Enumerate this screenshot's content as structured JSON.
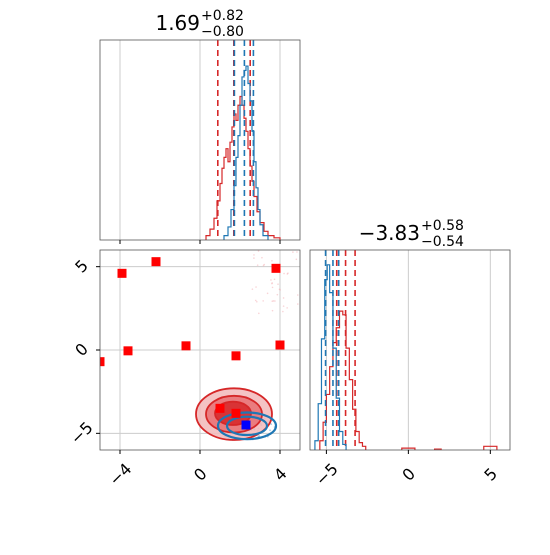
{
  "chart_data": [
    {
      "panel": "marginal-x",
      "type": "histogram",
      "title": {
        "value": "1.69",
        "plus": "+0.82",
        "minus": "−0.80"
      },
      "xlim": [
        -5,
        5
      ],
      "grid": true,
      "series": [
        {
          "color": "#d62728",
          "bins": [
            {
              "x0": 0.3,
              "x1": 0.5,
              "v": 0.02
            },
            {
              "x0": 0.5,
              "x1": 0.7,
              "v": 0.05
            },
            {
              "x0": 0.7,
              "x1": 0.85,
              "v": 0.1
            },
            {
              "x0": 0.85,
              "x1": 1.0,
              "v": 0.18
            },
            {
              "x0": 1.0,
              "x1": 1.1,
              "v": 0.26
            },
            {
              "x0": 1.1,
              "x1": 1.2,
              "v": 0.33
            },
            {
              "x0": 1.2,
              "x1": 1.3,
              "v": 0.38
            },
            {
              "x0": 1.3,
              "x1": 1.4,
              "v": 0.42
            },
            {
              "x0": 1.4,
              "x1": 1.5,
              "v": 0.36
            },
            {
              "x0": 1.5,
              "x1": 1.6,
              "v": 0.45
            },
            {
              "x0": 1.6,
              "x1": 1.7,
              "v": 0.52
            },
            {
              "x0": 1.7,
              "x1": 1.8,
              "v": 0.58
            },
            {
              "x0": 1.8,
              "x1": 1.9,
              "v": 0.55
            },
            {
              "x0": 1.9,
              "x1": 2.0,
              "v": 0.62
            },
            {
              "x0": 2.0,
              "x1": 2.1,
              "v": 0.66
            },
            {
              "x0": 2.1,
              "x1": 2.2,
              "v": 0.62
            },
            {
              "x0": 2.2,
              "x1": 2.3,
              "v": 0.56
            },
            {
              "x0": 2.3,
              "x1": 2.4,
              "v": 0.5
            },
            {
              "x0": 2.4,
              "x1": 2.5,
              "v": 0.42
            },
            {
              "x0": 2.5,
              "x1": 2.6,
              "v": 0.34
            },
            {
              "x0": 2.6,
              "x1": 2.7,
              "v": 0.27
            },
            {
              "x0": 2.7,
              "x1": 2.85,
              "v": 0.2
            },
            {
              "x0": 2.85,
              "x1": 3.0,
              "v": 0.13
            },
            {
              "x0": 3.0,
              "x1": 3.2,
              "v": 0.08
            },
            {
              "x0": 3.2,
              "x1": 3.4,
              "v": 0.04
            },
            {
              "x0": 3.4,
              "x1": 3.7,
              "v": 0.02
            },
            {
              "x0": 3.7,
              "x1": 4.0,
              "v": 0.01
            }
          ],
          "quantiles": [
            0.89,
            1.69,
            2.51
          ]
        },
        {
          "color": "#1f77b4",
          "bins": [
            {
              "x0": 1.2,
              "x1": 1.4,
              "v": 0.02
            },
            {
              "x0": 1.4,
              "x1": 1.55,
              "v": 0.06
            },
            {
              "x0": 1.55,
              "x1": 1.7,
              "v": 0.14
            },
            {
              "x0": 1.7,
              "x1": 1.8,
              "v": 0.25
            },
            {
              "x0": 1.8,
              "x1": 1.9,
              "v": 0.38
            },
            {
              "x0": 1.9,
              "x1": 2.0,
              "v": 0.48
            },
            {
              "x0": 2.0,
              "x1": 2.1,
              "v": 0.62
            },
            {
              "x0": 2.1,
              "x1": 2.2,
              "v": 0.75
            },
            {
              "x0": 2.2,
              "x1": 2.3,
              "v": 0.78
            },
            {
              "x0": 2.3,
              "x1": 2.4,
              "v": 0.8
            },
            {
              "x0": 2.4,
              "x1": 2.5,
              "v": 0.72
            },
            {
              "x0": 2.5,
              "x1": 2.6,
              "v": 0.64
            },
            {
              "x0": 2.6,
              "x1": 2.7,
              "v": 0.5
            },
            {
              "x0": 2.7,
              "x1": 2.8,
              "v": 0.36
            },
            {
              "x0": 2.8,
              "x1": 2.9,
              "v": 0.24
            },
            {
              "x0": 2.9,
              "x1": 3.0,
              "v": 0.14
            },
            {
              "x0": 3.0,
              "x1": 3.15,
              "v": 0.07
            },
            {
              "x0": 3.15,
              "x1": 3.4,
              "v": 0.02
            }
          ],
          "quantiles": [
            1.72,
            2.22,
            2.67
          ]
        }
      ]
    },
    {
      "panel": "marginal-y",
      "type": "histogram",
      "title": {
        "value": "−3.83",
        "plus": "+0.58",
        "minus": "−0.54"
      },
      "xlim": [
        -6,
        6.2
      ],
      "xticks": [
        {
          "v": -5,
          "label": "−5"
        },
        {
          "v": 0,
          "label": "0"
        },
        {
          "v": 5,
          "label": "5"
        }
      ],
      "grid": true,
      "series": [
        {
          "color": "#d62728",
          "bins": [
            {
              "x0": -5.4,
              "x1": -5.2,
              "v": 0.05
            },
            {
              "x0": -5.2,
              "x1": -5.0,
              "v": 0.15
            },
            {
              "x0": -5.0,
              "x1": -4.8,
              "v": 0.3
            },
            {
              "x0": -4.8,
              "x1": -4.6,
              "v": 0.45
            },
            {
              "x0": -4.6,
              "x1": -4.4,
              "v": 0.58
            },
            {
              "x0": -4.4,
              "x1": -4.2,
              "v": 0.66
            },
            {
              "x0": -4.2,
              "x1": -4.0,
              "v": 0.75
            },
            {
              "x0": -4.0,
              "x1": -3.8,
              "v": 0.73
            },
            {
              "x0": -3.8,
              "x1": -3.6,
              "v": 0.55
            },
            {
              "x0": -3.6,
              "x1": -3.4,
              "v": 0.38
            },
            {
              "x0": -3.4,
              "x1": -3.2,
              "v": 0.22
            },
            {
              "x0": -3.2,
              "x1": -3.0,
              "v": 0.1
            },
            {
              "x0": -3.0,
              "x1": -2.8,
              "v": 0.04
            },
            {
              "x0": -2.8,
              "x1": -2.6,
              "v": 0.02
            },
            {
              "x0": -0.4,
              "x1": 0.0,
              "v": 0.01
            },
            {
              "x0": 0.0,
              "x1": 0.4,
              "v": 0.01
            },
            {
              "x0": 1.6,
              "x1": 2.0,
              "v": 0.005
            },
            {
              "x0": 4.6,
              "x1": 5.4,
              "v": 0.02
            }
          ],
          "quantiles": [
            -4.37,
            -3.83,
            -3.25
          ]
        },
        {
          "color": "#1f77b4",
          "bins": [
            {
              "x0": -5.7,
              "x1": -5.5,
              "v": 0.05
            },
            {
              "x0": -5.5,
              "x1": -5.3,
              "v": 0.25
            },
            {
              "x0": -5.3,
              "x1": -5.1,
              "v": 0.6
            },
            {
              "x0": -5.1,
              "x1": -4.95,
              "v": 0.92
            },
            {
              "x0": -4.95,
              "x1": -4.8,
              "v": 1.0
            },
            {
              "x0": -4.8,
              "x1": -4.6,
              "v": 0.85
            },
            {
              "x0": -4.6,
              "x1": -4.4,
              "v": 0.55
            },
            {
              "x0": -4.4,
              "x1": -4.2,
              "v": 0.28
            },
            {
              "x0": -4.2,
              "x1": -4.0,
              "v": 0.1
            },
            {
              "x0": -4.0,
              "x1": -3.8,
              "v": 0.03
            }
          ],
          "quantiles": [
            -5.05,
            -4.6,
            -4.25
          ]
        }
      ]
    },
    {
      "panel": "joint",
      "type": "contour-scatter",
      "xlim": [
        -5,
        5
      ],
      "ylim": [
        -6,
        6
      ],
      "xticks": [
        {
          "v": -4,
          "label": "−4"
        },
        {
          "v": 0,
          "label": "0"
        },
        {
          "v": 4,
          "label": "4"
        }
      ],
      "yticks": [
        {
          "v": -5,
          "label": "−5"
        },
        {
          "v": 0,
          "label": "0"
        },
        {
          "v": 5,
          "label": "5"
        }
      ],
      "grid": true,
      "red_contours": [
        {
          "cx": 1.7,
          "cy": -3.85,
          "rx": 1.9,
          "ry": 1.55
        },
        {
          "cx": 1.7,
          "cy": -3.85,
          "rx": 1.4,
          "ry": 1.1
        },
        {
          "cx": 1.65,
          "cy": -3.8,
          "rx": 0.9,
          "ry": 0.7
        }
      ],
      "blue_contours": [
        {
          "cx": 2.35,
          "cy": -4.55,
          "rx": 1.45,
          "ry": 0.8
        },
        {
          "cx": 2.35,
          "cy": -4.55,
          "rx": 1.0,
          "ry": 0.55
        }
      ],
      "red_markers": [
        {
          "x": -3.9,
          "y": 4.6
        },
        {
          "x": -2.2,
          "y": 5.3
        },
        {
          "x": 3.8,
          "y": 4.9
        },
        {
          "x": -3.6,
          "y": -0.05
        },
        {
          "x": -0.7,
          "y": 0.25
        },
        {
          "x": 1.8,
          "y": -0.35
        },
        {
          "x": 4.0,
          "y": 0.3
        },
        {
          "x": -5.0,
          "y": -0.7
        },
        {
          "x": 1.0,
          "y": -3.5
        },
        {
          "x": 1.8,
          "y": -3.8
        }
      ],
      "blue_markers": [
        {
          "x": 2.3,
          "y": -4.5
        }
      ],
      "colors": {
        "red": "#d62728",
        "blue": "#1f77b4",
        "red_marker": "#ff0000",
        "blue_marker": "#0000ff"
      }
    }
  ]
}
